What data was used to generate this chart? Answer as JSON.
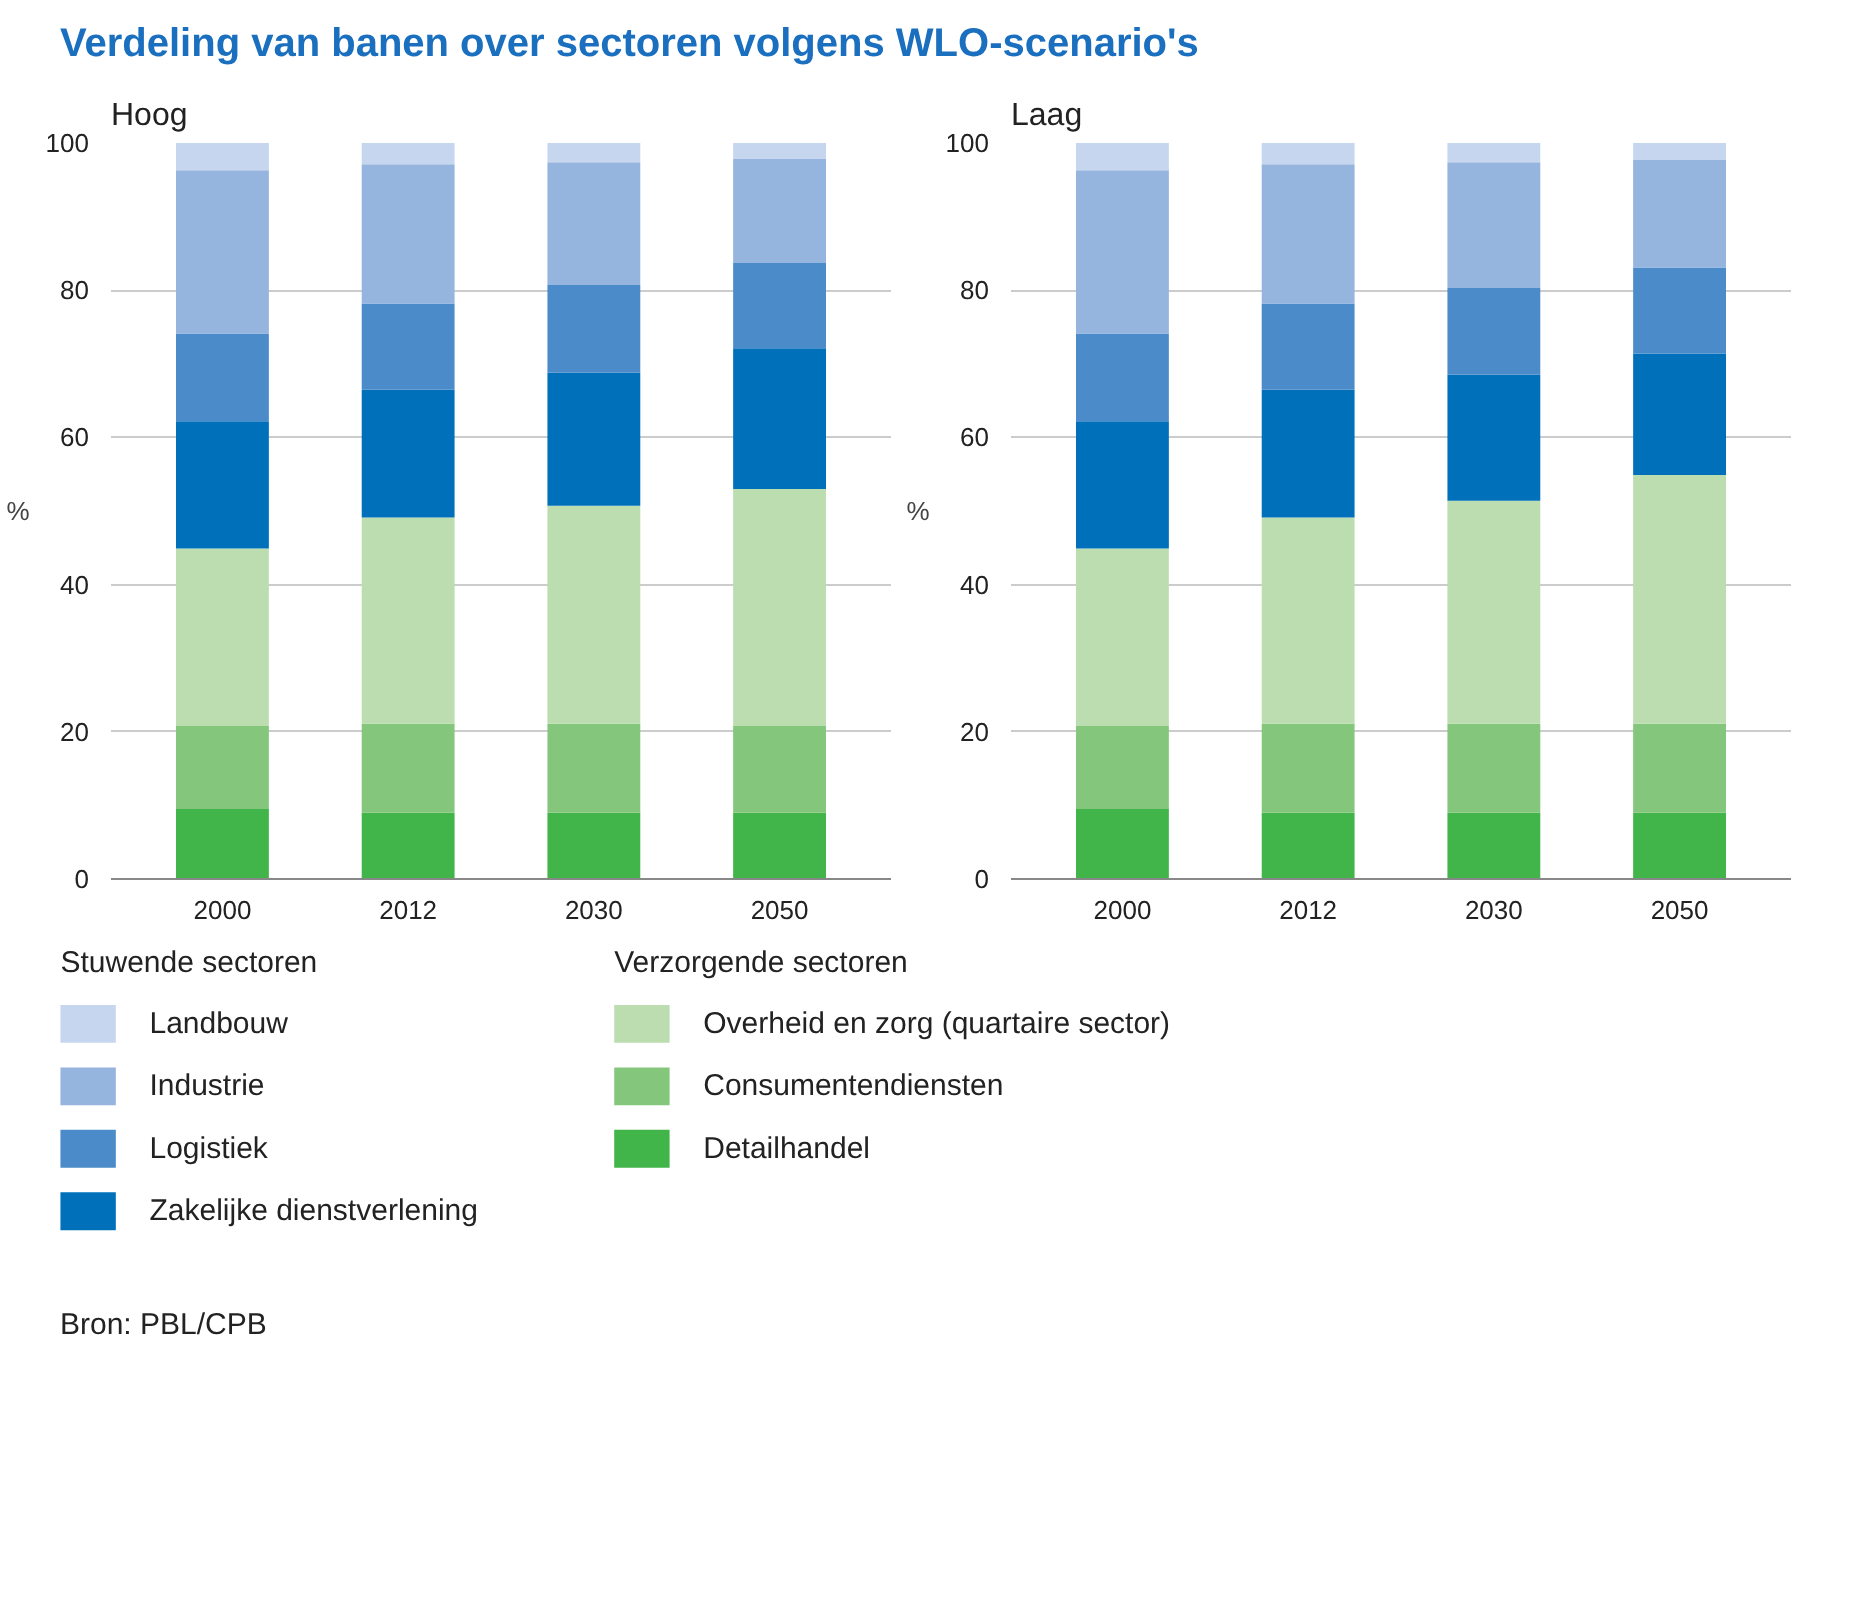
{
  "chart_data": [
    {
      "type": "bar",
      "title": "Verdeling van banen over sectoren volgens WLO-scenario's",
      "subtitle": "Hoog",
      "ylabel": "%",
      "stacked": true,
      "grid": "y",
      "legend": "bottom",
      "categories": [
        "2000",
        "2012",
        "2030",
        "2050"
      ],
      "ylim": [
        0,
        100
      ],
      "yticks": [
        0,
        20,
        40,
        60,
        80,
        100
      ],
      "annotations": [
        "Stuwende sectoren",
        "Verzorgende sectoren",
        "Bron: PBL/CPB"
      ],
      "series": [
        {
          "name": "Detailhandel",
          "color": "#41b549",
          "values": [
            9.5,
            9.0,
            9.0,
            9.0
          ]
        },
        {
          "name": "Consumentendiensten",
          "color": "#84c77c",
          "values": [
            11.3,
            12.1,
            12.1,
            11.8
          ]
        },
        {
          "name": "Overheid en zorg (quartaire sector)",
          "color": "#bbddb0",
          "values": [
            24.1,
            28.0,
            29.6,
            32.2
          ]
        },
        {
          "name": "Zakelijke dienstverlening",
          "color": "#0070bb",
          "values": [
            17.3,
            17.4,
            18.1,
            19.1
          ]
        },
        {
          "name": "Logistiek",
          "color": "#4b8bc9",
          "values": [
            11.9,
            11.7,
            11.9,
            11.6
          ]
        },
        {
          "name": "Industrie",
          "color": "#95b4de",
          "values": [
            22.2,
            18.9,
            16.7,
            14.2
          ]
        },
        {
          "name": "Landbouw",
          "color": "#c6d6ef",
          "values": [
            3.7,
            2.9,
            2.6,
            2.1
          ]
        }
      ]
    },
    {
      "type": "bar",
      "title": "Laag",
      "ylabel": "%",
      "stacked": true,
      "grid": "y",
      "categories": [
        "2000",
        "2012",
        "2030",
        "2050"
      ],
      "ylim": [
        0,
        100
      ],
      "yticks": [
        0,
        20,
        40,
        60,
        80,
        100
      ],
      "series": [
        {
          "color": "#41b549",
          "values": [
            9.5,
            9.0,
            9.0,
            9.0
          ]
        },
        {
          "color": "#84c77c",
          "values": [
            11.3,
            12.1,
            12.1,
            12.1
          ]
        },
        {
          "color": "#bbddb0",
          "values": [
            24.1,
            28.0,
            30.3,
            33.8
          ]
        },
        {
          "color": "#0070bb",
          "values": [
            17.3,
            17.4,
            17.1,
            16.5
          ]
        },
        {
          "color": "#4b8bc9",
          "values": [
            11.9,
            11.7,
            11.8,
            11.7
          ]
        },
        {
          "color": "#95b4de",
          "values": [
            22.2,
            18.9,
            17.1,
            14.6
          ]
        },
        {
          "color": "#c6d6ef",
          "values": [
            3.7,
            2.9,
            2.6,
            2.3
          ]
        }
      ]
    }
  ]
}
